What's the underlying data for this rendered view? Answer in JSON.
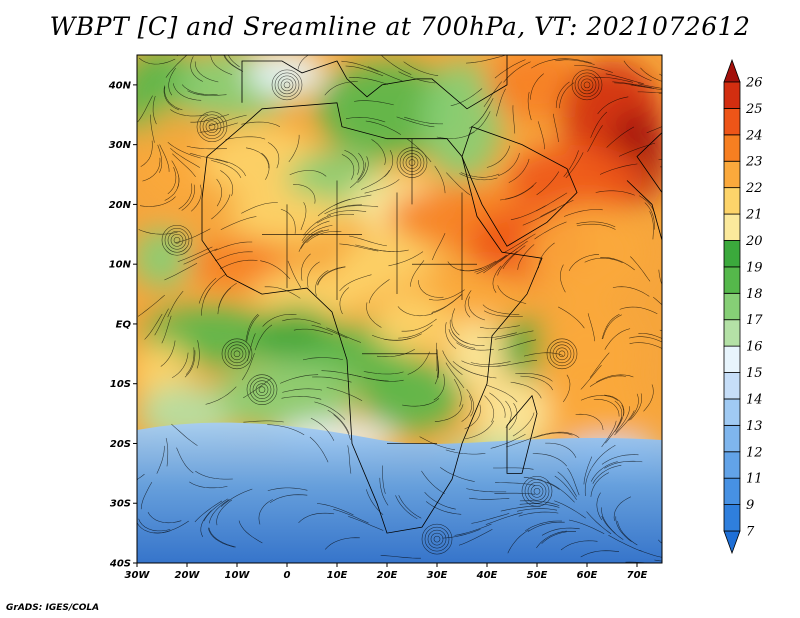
{
  "title": "WBPT [C] and Sreamline at 700hPa, VT: 2021072612",
  "footer": "GrADS: IGES/COLA",
  "map": {
    "variable": "Wet-bulb potential temperature",
    "units": "C",
    "level": "700hPa",
    "valid_time": "2021072612",
    "lon_range": [
      -30,
      75
    ],
    "lat_range": [
      -40,
      45
    ],
    "lon_ticks": [
      "30W",
      "20W",
      "10W",
      "0",
      "10E",
      "20E",
      "30E",
      "40E",
      "50E",
      "60E",
      "70E"
    ],
    "lat_ticks": [
      "40S",
      "30S",
      "20S",
      "10S",
      "EQ",
      "10N",
      "20N",
      "30N",
      "40N"
    ],
    "overlays": [
      "streamlines",
      "country-boundaries",
      "coastlines"
    ]
  },
  "colorbar": {
    "levels": [
      "7",
      "9",
      "11",
      "12",
      "13",
      "14",
      "15",
      "16",
      "17",
      "18",
      "19",
      "20",
      "21",
      "22",
      "23",
      "24",
      "25",
      "26"
    ],
    "colors": [
      "#1e6fd6",
      "#2f7fdd",
      "#4791e3",
      "#62a3e8",
      "#7fb6ee",
      "#a0caf3",
      "#c6def8",
      "#e8f5fd",
      "#b4e1a6",
      "#86cf76",
      "#55b84b",
      "#3ba93c",
      "#fbe99c",
      "#fdd46a",
      "#fba93c",
      "#f77f21",
      "#ee5518",
      "#d22e10",
      "#a3100b"
    ]
  }
}
